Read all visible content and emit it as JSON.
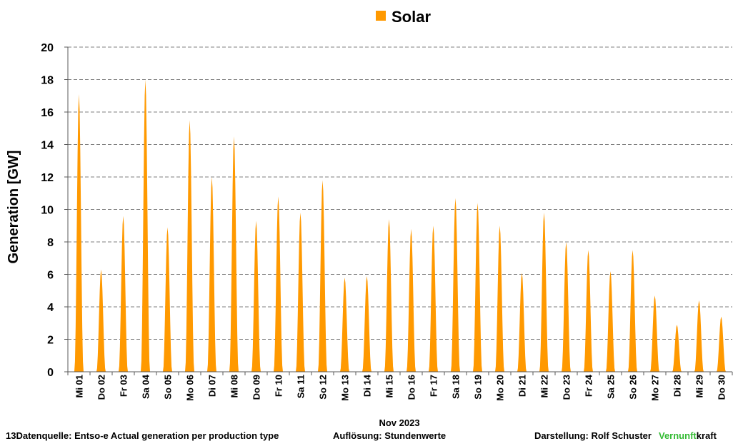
{
  "chart_data": {
    "type": "area",
    "legend": {
      "label": "Solar",
      "position": "top-center"
    },
    "ylabel": "Generation   [GW]",
    "xlabel": "Nov 2023",
    "ylim": [
      0,
      20
    ],
    "yticks": [
      0,
      2,
      4,
      6,
      8,
      10,
      12,
      14,
      16,
      18,
      20
    ],
    "grid": true,
    "categories": [
      "Mi 01",
      "Do 02",
      "Fr 03",
      "Sa 04",
      "So 05",
      "Mo 06",
      "Di 07",
      "Mi 08",
      "Do 09",
      "Fr 10",
      "Sa 11",
      "So 12",
      "Mo 13",
      "Di 14",
      "Mi 15",
      "Do 16",
      "Fr 17",
      "Sa 18",
      "So 19",
      "Mo 20",
      "Di 21",
      "Mi 22",
      "Do 23",
      "Fr 24",
      "Sa 25",
      "So 26",
      "Mo 27",
      "Di 28",
      "Mi 29",
      "Do 30"
    ],
    "series": [
      {
        "name": "Solar",
        "color": "#ff9900",
        "daily_peaks": [
          17.1,
          6.3,
          9.6,
          18.0,
          8.9,
          15.5,
          12.0,
          14.5,
          9.3,
          10.8,
          9.8,
          11.8,
          5.8,
          5.9,
          9.4,
          8.8,
          9.0,
          10.7,
          10.4,
          9.0,
          6.1,
          9.8,
          8.0,
          7.5,
          6.2,
          7.5,
          4.7,
          2.9,
          4.4,
          3.4
        ]
      }
    ]
  },
  "footer": {
    "source": "13Datenquelle: Entso-e  Actual generation per production type",
    "resolution": "Auflösung: Stundenwerte",
    "author": "Darstellung:  Rolf Schuster",
    "brand_green": "Vernunft",
    "brand_black": "kraft",
    "brand_color": "#33bb33"
  }
}
